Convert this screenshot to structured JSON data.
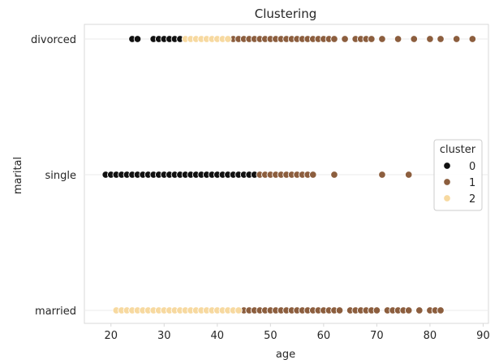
{
  "chart_data": {
    "type": "scatter",
    "title": "Clustering",
    "xlabel": "age",
    "ylabel": "marital",
    "xlim": [
      15,
      91
    ],
    "xticks": [
      20,
      30,
      40,
      50,
      60,
      70,
      80,
      90
    ],
    "categories": [
      "divorced",
      "single",
      "married"
    ],
    "grid": true,
    "legend": {
      "title": "cluster",
      "placement": "right"
    },
    "series": [
      {
        "name": "0",
        "color": "#111111",
        "points": [
          [
            "divorced",
            [
              24,
              25,
              28,
              29,
              30,
              31,
              32,
              33
            ]
          ],
          [
            "single",
            [
              19,
              20,
              21,
              22,
              23,
              24,
              25,
              26,
              27,
              28,
              29,
              30,
              31,
              32,
              33,
              34,
              35,
              36,
              37,
              38,
              39,
              40,
              41,
              42,
              43,
              44,
              45,
              46,
              47
            ]
          ]
        ]
      },
      {
        "name": "1",
        "color": "#8c5e3e",
        "points": [
          [
            "divorced",
            [
              43,
              44,
              45,
              46,
              47,
              48,
              49,
              50,
              51,
              52,
              53,
              54,
              55,
              56,
              57,
              58,
              59,
              60,
              61,
              62,
              64,
              66,
              67,
              68,
              69,
              71,
              74,
              77,
              80,
              82,
              85,
              88
            ]
          ],
          [
            "single",
            [
              48,
              49,
              50,
              51,
              52,
              53,
              54,
              55,
              56,
              57,
              58,
              62,
              71,
              76
            ]
          ],
          [
            "married",
            [
              45,
              46,
              47,
              48,
              49,
              50,
              51,
              52,
              53,
              54,
              55,
              56,
              57,
              58,
              59,
              60,
              61,
              62,
              63,
              65,
              66,
              67,
              68,
              69,
              70,
              72,
              73,
              74,
              75,
              76,
              78,
              80,
              81,
              82
            ]
          ]
        ]
      },
      {
        "name": "2",
        "color": "#f7d9a0",
        "points": [
          [
            "divorced",
            [
              34,
              35,
              36,
              37,
              38,
              39,
              40,
              41,
              42
            ]
          ],
          [
            "married",
            [
              21,
              22,
              23,
              24,
              25,
              26,
              27,
              28,
              29,
              30,
              31,
              32,
              33,
              34,
              35,
              36,
              37,
              38,
              39,
              40,
              41,
              42,
              43,
              44
            ]
          ]
        ]
      }
    ]
  }
}
